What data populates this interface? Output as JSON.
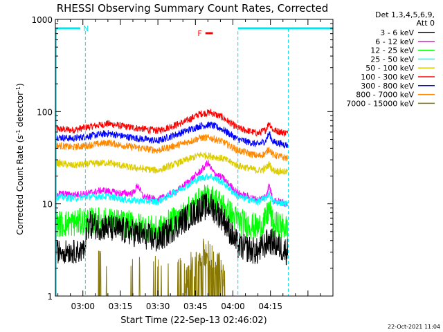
{
  "chart_data": {
    "type": "line",
    "title": "RHESSI Observing Summary Count Rates, Corrected",
    "xlabel": "Start Time (22-Sep-13 02:46:02)",
    "ylabel_parts": {
      "base": "Corrected Count Rate (s",
      "sup1": "-1",
      "mid": " detector",
      "sup2": "-1",
      "end": ")"
    },
    "yscale": "log",
    "ylim": [
      1,
      1000
    ],
    "y_ticks": [
      {
        "value": 1,
        "label": "1"
      },
      {
        "value": 10,
        "label": "10"
      },
      {
        "value": 100,
        "label": "100"
      },
      {
        "value": 1000,
        "label": "1000"
      }
    ],
    "xlim_minutes": [
      -11,
      100
    ],
    "x_ticks": [
      {
        "minutes": 0,
        "label": "03:00"
      },
      {
        "minutes": 15,
        "label": "03:15"
      },
      {
        "minutes": 30,
        "label": "03:30"
      },
      {
        "minutes": 45,
        "label": "03:45"
      },
      {
        "minutes": 60,
        "label": "04:00"
      },
      {
        "minutes": 75,
        "label": "04:15"
      }
    ],
    "legend": {
      "placement": "right",
      "header": [
        "Det 1,3,4,5,6,9,",
        "Att 0"
      ],
      "entries": [
        {
          "label": "3 - 6 keV",
          "color": "#000000"
        },
        {
          "label": "6 - 12 keV",
          "color": "#ff00ff"
        },
        {
          "label": "12 - 25 keV",
          "color": "#00ff00"
        },
        {
          "label": "25 - 50 keV",
          "color": "#00ffff"
        },
        {
          "label": "50 - 100 keV",
          "color": "#ddcc00"
        },
        {
          "label": "100 - 300 keV",
          "color": "#ff0000"
        },
        {
          "label": "300 - 800 keV",
          "color": "#0000ff"
        },
        {
          "label": "800 - 7000 keV",
          "color": "#ff8800"
        },
        {
          "label": "7000 - 15000 keV",
          "color": "#887700"
        }
      ]
    },
    "flags": [
      {
        "label": "N",
        "color": "#00e5ee",
        "segments_minutes": [
          [
            -11,
            -1
          ],
          [
            62,
            100
          ]
        ]
      },
      {
        "label": "F",
        "color": "#ff0000",
        "segments_minutes": [
          [
            49,
            52
          ]
        ]
      }
    ],
    "vlines_minutes": [
      1,
      62
    ],
    "series": [
      {
        "color": "#ff0000",
        "level_points": [
          [
            -11,
            65
          ],
          [
            -4,
            63
          ],
          [
            2,
            68
          ],
          [
            10,
            74
          ],
          [
            18,
            68
          ],
          [
            30,
            62
          ],
          [
            40,
            76
          ],
          [
            47,
            95
          ],
          [
            51,
            98
          ],
          [
            56,
            86
          ],
          [
            62,
            66
          ],
          [
            70,
            58
          ],
          [
            73,
            63
          ],
          [
            74.5,
            76
          ],
          [
            76,
            63
          ],
          [
            82,
            58
          ]
        ]
      },
      {
        "color": "#0000ff",
        "level_points": [
          [
            -11,
            53
          ],
          [
            -4,
            51
          ],
          [
            2,
            54
          ],
          [
            10,
            58
          ],
          [
            18,
            53
          ],
          [
            30,
            48
          ],
          [
            40,
            60
          ],
          [
            47,
            70
          ],
          [
            51,
            72
          ],
          [
            56,
            64
          ],
          [
            62,
            50
          ],
          [
            70,
            44
          ],
          [
            73,
            48
          ],
          [
            74.5,
            58
          ],
          [
            76,
            47
          ],
          [
            82,
            43
          ]
        ]
      },
      {
        "color": "#ff8800",
        "level_points": [
          [
            -11,
            43
          ],
          [
            -4,
            41
          ],
          [
            2,
            43
          ],
          [
            10,
            46
          ],
          [
            18,
            42
          ],
          [
            30,
            38
          ],
          [
            40,
            45
          ],
          [
            47,
            52
          ],
          [
            51,
            52
          ],
          [
            56,
            47
          ],
          [
            62,
            38
          ],
          [
            70,
            33
          ],
          [
            73,
            35
          ],
          [
            74.5,
            40
          ],
          [
            76,
            34
          ],
          [
            82,
            31
          ]
        ]
      },
      {
        "color": "#ddcc00",
        "level_points": [
          [
            -11,
            28
          ],
          [
            -4,
            26
          ],
          [
            2,
            27
          ],
          [
            10,
            28
          ],
          [
            18,
            25
          ],
          [
            30,
            23
          ],
          [
            40,
            29
          ],
          [
            47,
            34
          ],
          [
            51,
            33
          ],
          [
            56,
            31
          ],
          [
            62,
            26
          ],
          [
            70,
            23
          ],
          [
            73,
            24
          ],
          [
            74.5,
            27
          ],
          [
            76,
            23
          ],
          [
            82,
            22
          ]
        ]
      },
      {
        "color": "#ff00ff",
        "level_points": [
          [
            -11,
            13
          ],
          [
            -4,
            12.5
          ],
          [
            2,
            13
          ],
          [
            8,
            14
          ],
          [
            15,
            13
          ],
          [
            20,
            13
          ],
          [
            22,
            16
          ],
          [
            24,
            12
          ],
          [
            30,
            11
          ],
          [
            38,
            14
          ],
          [
            45,
            20
          ],
          [
            48,
            24
          ],
          [
            50,
            28
          ],
          [
            52,
            22
          ],
          [
            56,
            19
          ],
          [
            62,
            13
          ],
          [
            70,
            11
          ],
          [
            73,
            12
          ],
          [
            74.5,
            16
          ],
          [
            76,
            11
          ],
          [
            82,
            10
          ]
        ]
      },
      {
        "color": "#00ffff",
        "level_points": [
          [
            -11,
            12
          ],
          [
            -4,
            11.5
          ],
          [
            2,
            12
          ],
          [
            10,
            12
          ],
          [
            18,
            11
          ],
          [
            30,
            10.5
          ],
          [
            40,
            15
          ],
          [
            47,
            19
          ],
          [
            51,
            20
          ],
          [
            56,
            17
          ],
          [
            62,
            12
          ],
          [
            70,
            10.5
          ],
          [
            73,
            11.5
          ],
          [
            74.5,
            13
          ],
          [
            76,
            10.5
          ],
          [
            82,
            10
          ]
        ]
      },
      {
        "color": "#00ff00",
        "level_points": [
          [
            -11,
            6
          ],
          [
            -4,
            6.2
          ],
          [
            2,
            6.5
          ],
          [
            10,
            6.5
          ],
          [
            18,
            6
          ],
          [
            30,
            5.2
          ],
          [
            40,
            7.5
          ],
          [
            47,
            11
          ],
          [
            51,
            12
          ],
          [
            56,
            9.5
          ],
          [
            62,
            6.5
          ],
          [
            70,
            5.5
          ],
          [
            73,
            6.5
          ],
          [
            74.5,
            9
          ],
          [
            76,
            6
          ],
          [
            82,
            5.5
          ]
        ]
      },
      {
        "color": "#000000",
        "level_points": [
          [
            -11,
            3
          ],
          [
            -4,
            3
          ],
          [
            1,
            3
          ],
          [
            1.5,
            6
          ],
          [
            10,
            5.5
          ],
          [
            18,
            5
          ],
          [
            25,
            4.5
          ],
          [
            30,
            4
          ],
          [
            38,
            6
          ],
          [
            47,
            9
          ],
          [
            51,
            9.5
          ],
          [
            56,
            7
          ],
          [
            62,
            3.5
          ],
          [
            70,
            3
          ],
          [
            74.5,
            4
          ],
          [
            82,
            3
          ]
        ]
      },
      {
        "color": "#887700",
        "level_points": [
          [
            1,
            1
          ],
          [
            18,
            1
          ],
          [
            40,
            1
          ],
          [
            44,
            2.5
          ],
          [
            50,
            3
          ],
          [
            56,
            2
          ],
          [
            58,
            1
          ],
          [
            82,
            1
          ]
        ]
      }
    ],
    "grid": false
  },
  "footer": {
    "timestamp": "22-Oct-2021 11:04"
  }
}
